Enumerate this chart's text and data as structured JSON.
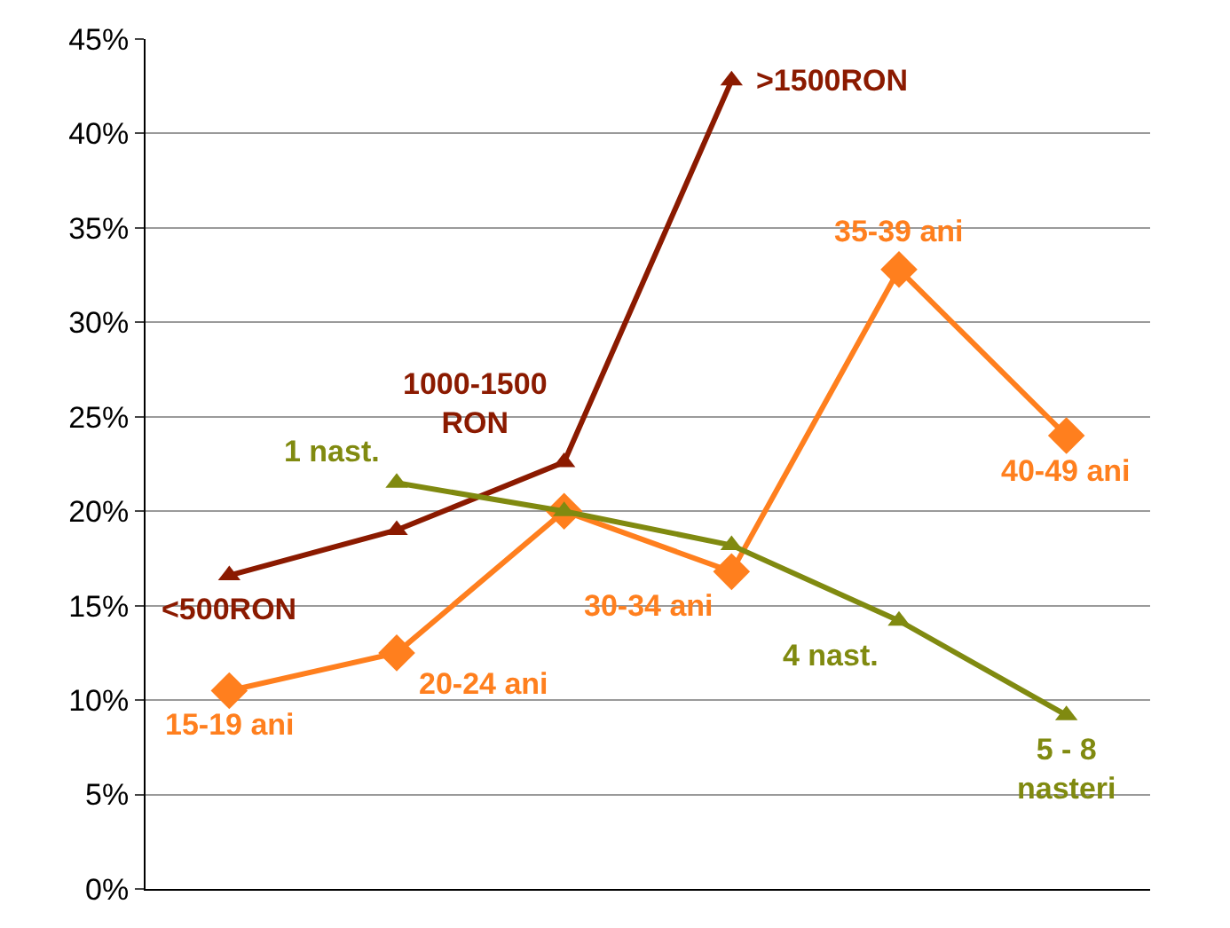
{
  "chart_data": {
    "type": "line",
    "categories": [
      null,
      null,
      null,
      null,
      null,
      null
    ],
    "series": [
      {
        "color": "#8b1a00",
        "marker": "triangle",
        "values": [
          16.6,
          19.0,
          22.6,
          42.8,
          null,
          null
        ]
      },
      {
        "color": "#ff7f1e",
        "marker": "diamond",
        "values": [
          10.5,
          12.5,
          20.0,
          16.8,
          32.8,
          24.0
        ]
      },
      {
        "color": "#808a10",
        "marker": "triangle",
        "values": [
          null,
          21.5,
          20.0,
          18.2,
          14.2,
          9.2
        ]
      }
    ],
    "annotations": [
      "<500RON",
      "1000-1500 RON",
      ">1500RON",
      "15-19 ani",
      "20-24 ani",
      "30-34 ani",
      "35-39 ani",
      "40-49 ani",
      "1 nast.",
      "4 nast.",
      "5 - 8 nasteri"
    ],
    "ylim": [
      0,
      45
    ],
    "yticks": [
      {
        "value": 0,
        "label": "0%"
      },
      {
        "value": 5,
        "label": "5%"
      },
      {
        "value": 10,
        "label": "10%"
      },
      {
        "value": 15,
        "label": "15%"
      },
      {
        "value": 20,
        "label": "20%"
      },
      {
        "value": 25,
        "label": "25%"
      },
      {
        "value": 30,
        "label": "30%"
      },
      {
        "value": 35,
        "label": "35%"
      },
      {
        "value": 40,
        "label": "40%"
      },
      {
        "value": 45,
        "label": "45%"
      }
    ],
    "grid": "y",
    "line_style": "solid"
  }
}
